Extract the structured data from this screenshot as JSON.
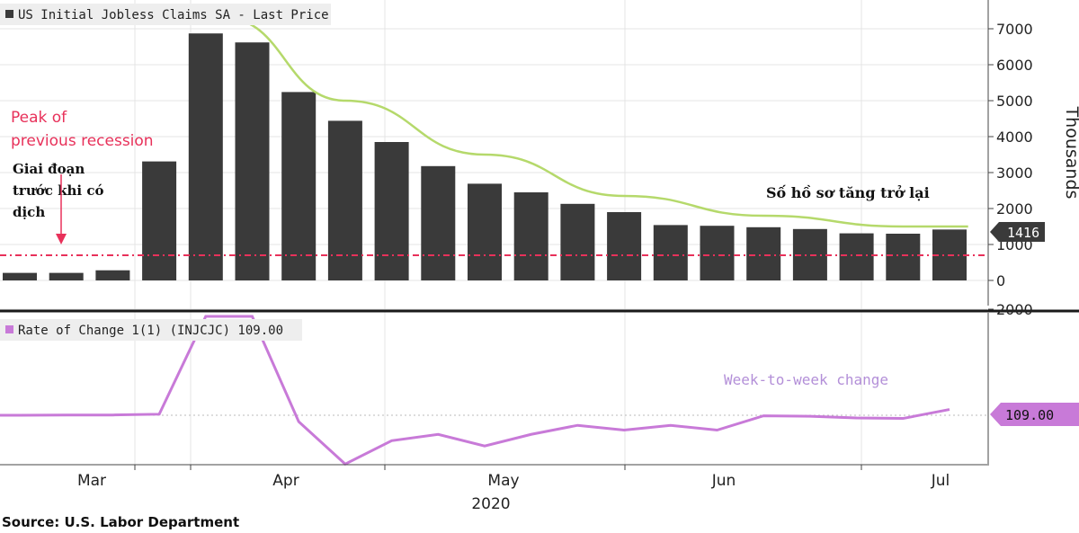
{
  "chart_data": [
    {
      "type": "bar",
      "legend": "US Initial Jobless Claims SA - Last Price",
      "ylabel": "Thousands",
      "ylim": [
        0,
        7500
      ],
      "yticks": [
        0,
        1000,
        2000,
        3000,
        4000,
        5000,
        6000,
        7000
      ],
      "yticklabels": [
        "0",
        "1000",
        "2000",
        "3000",
        "4000",
        "5000",
        "6000",
        "7000"
      ],
      "values": [
        210,
        210,
        282,
        3310,
        6870,
        6620,
        5240,
        4440,
        3850,
        3180,
        2690,
        2450,
        2130,
        1900,
        1540,
        1520,
        1480,
        1430,
        1310,
        1300,
        1416
      ],
      "last_value_label": "1416",
      "reference_line": {
        "value": 700,
        "label_line1": "Peak of",
        "label_line2": "previous recession",
        "color": "#e8315a"
      },
      "trend_curve_points": [
        [
          4.4,
          7300
        ],
        [
          7,
          5000
        ],
        [
          10,
          3500
        ],
        [
          13,
          2350
        ],
        [
          16,
          1800
        ],
        [
          19,
          1500
        ],
        [
          20.4,
          1500
        ]
      ],
      "annotations": {
        "before": [
          "Giai đoạn",
          "trước khi có",
          "dịch"
        ],
        "rise": "Số hồ sơ tăng trở lại"
      },
      "colors": {
        "bar": "#3a3a3a",
        "trend": "#b5d96b",
        "trend_end": "#ecef9a",
        "annotation_arrow": "#e8315a"
      }
    },
    {
      "type": "line",
      "legend": "Rate of Change 1(1) (INJCJC) 109.00",
      "ylim": [
        -800,
        3000
      ],
      "yticks": [
        2000
      ],
      "yticklabels": [
        "2000"
      ],
      "values": [
        0,
        5,
        5,
        20,
        2830,
        2830,
        -120,
        -920,
        -480,
        -360,
        -580,
        -360,
        -190,
        -280,
        -190,
        -280,
        -10,
        -20,
        -50,
        -60,
        109
      ],
      "last_value_label": "109.00",
      "annotation": "Week-to-week change",
      "colors": {
        "line": "#c87ad8",
        "label": "#b38fd8"
      }
    }
  ],
  "xaxis": {
    "labels": [
      "Mar",
      "Apr",
      "May",
      "Jun",
      "Jul"
    ],
    "year": "2020"
  },
  "source": "Source: U.S. Labor Department"
}
